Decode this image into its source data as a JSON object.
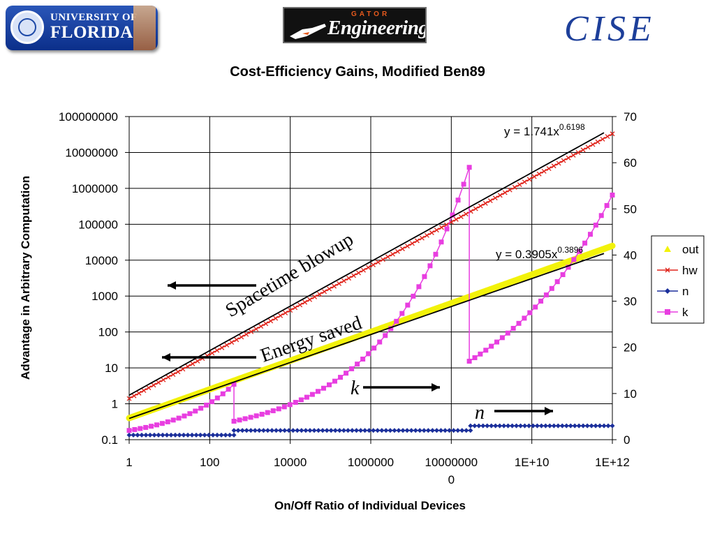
{
  "logos": {
    "uf_line1": "UNIVERSITY OF",
    "uf_line2": "FLORIDA",
    "gator_top": "GATOR",
    "gator_main": "Engineering",
    "cise": "CISE"
  },
  "chart_data": {
    "type": "scatter",
    "title": "Cost-Efficiency Gains, Modified Ben89",
    "xlabel": "On/Off Ratio of Individual Devices",
    "ylabel": "Advantage in Arbitrary Computation",
    "x_scale": "log",
    "y_scale": "log",
    "xlim": [
      1,
      1000000000000.0
    ],
    "ylim": [
      0.1,
      100000000
    ],
    "y2lim": [
      0,
      70
    ],
    "x_ticks": [
      "1",
      "100",
      "10000",
      "1000000",
      "10000000\n0",
      "1E+10",
      "1E+12"
    ],
    "y_ticks": [
      "0.1",
      "1",
      "10",
      "100",
      "1000",
      "10000",
      "100000",
      "1000000",
      "10000000",
      "100000000"
    ],
    "y2_ticks": [
      "0",
      "10",
      "20",
      "30",
      "40",
      "50",
      "60",
      "70"
    ],
    "grid": true,
    "legend_position": "right",
    "legend": [
      "out",
      "hw",
      "n",
      "k"
    ],
    "colors": {
      "out": "#f2f20a",
      "hw": "#e0241b",
      "n": "#1b2f9b",
      "k": "#e83ee0",
      "trend": "#000000"
    },
    "series": [
      {
        "name": "out",
        "axis": "left",
        "marker": "triangle",
        "segments": [
          {
            "x_start": 1,
            "x_end": 1000000000000.0,
            "y_start": 0.4,
            "y_end": 25000
          }
        ]
      },
      {
        "name": "hw",
        "axis": "left",
        "marker": "x",
        "segments": [
          {
            "x_start": 1,
            "x_end": 1000000000000.0,
            "y_start": 1.4,
            "y_end": 33000000
          }
        ]
      },
      {
        "name": "n",
        "axis": "right",
        "marker": "diamond",
        "segments": [
          {
            "x_start": 1,
            "x_end": 400,
            "y": 1
          },
          {
            "x_start": 400,
            "x_end": 300000000,
            "y": 2
          },
          {
            "x_start": 300000000,
            "x_end": 1000000000000.0,
            "y": 3
          }
        ]
      },
      {
        "name": "k",
        "axis": "right",
        "marker": "square",
        "segments": [
          {
            "x_start": 1,
            "x_end": 400,
            "y_start": 2,
            "y_end": 12
          },
          {
            "x_start": 400,
            "x_end": 280000000,
            "y_start": 4,
            "y_end": 59
          },
          {
            "x_start": 280000000,
            "x_end": 1000000000000.0,
            "y_start": 17,
            "y_end": 53
          }
        ]
      }
    ],
    "trendlines": [
      {
        "label": "y = 1.741x",
        "exponent": "0.6198",
        "coef": 1.741,
        "power": 0.6198
      },
      {
        "label": "y = 0.3905x",
        "exponent": "0.3896",
        "coef": 0.3905,
        "power": 0.3896
      }
    ],
    "annotations": [
      {
        "text": "Spacetime blowup",
        "arrow": "left"
      },
      {
        "text": "Energy saved",
        "arrow": "left"
      },
      {
        "text": "k",
        "arrow": "right"
      },
      {
        "text": "n",
        "arrow": "right"
      }
    ]
  }
}
